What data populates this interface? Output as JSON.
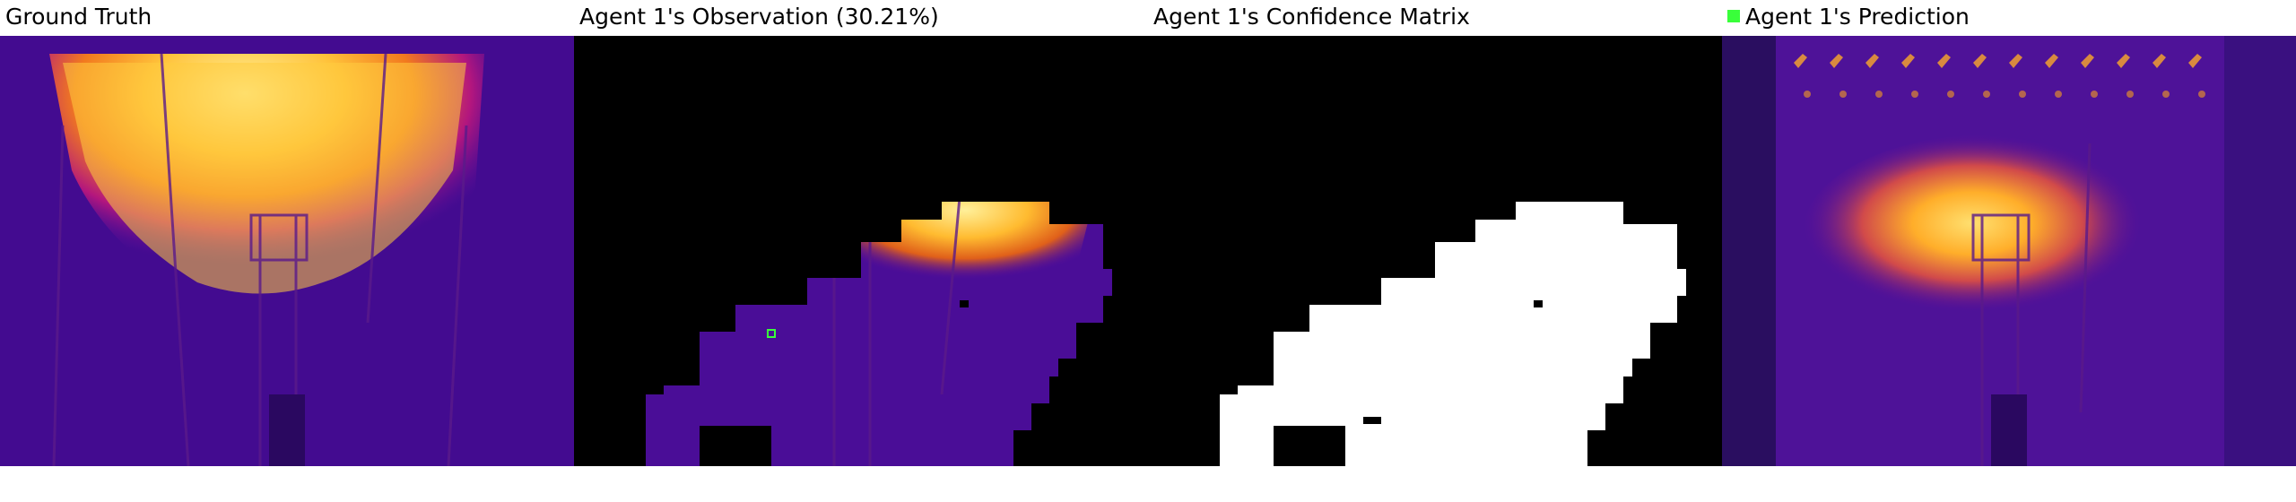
{
  "panels": {
    "ground_truth": {
      "title": "Ground Truth"
    },
    "observation": {
      "title": "Agent 1's Observation (30.21%)"
    },
    "confidence": {
      "title": "Agent 1's Confidence Matrix"
    },
    "prediction": {
      "title": "Agent 1's Prediction",
      "marker_color": "#39ff3a"
    }
  },
  "colors": {
    "background": "#ffffff",
    "thermal_low": "#3d0a8c",
    "thermal_mid": "#c1187a",
    "thermal_high": "#ffd43a",
    "mask_white": "#ffffff",
    "mask_black": "#000000",
    "agent_marker": "#39ff3a"
  }
}
